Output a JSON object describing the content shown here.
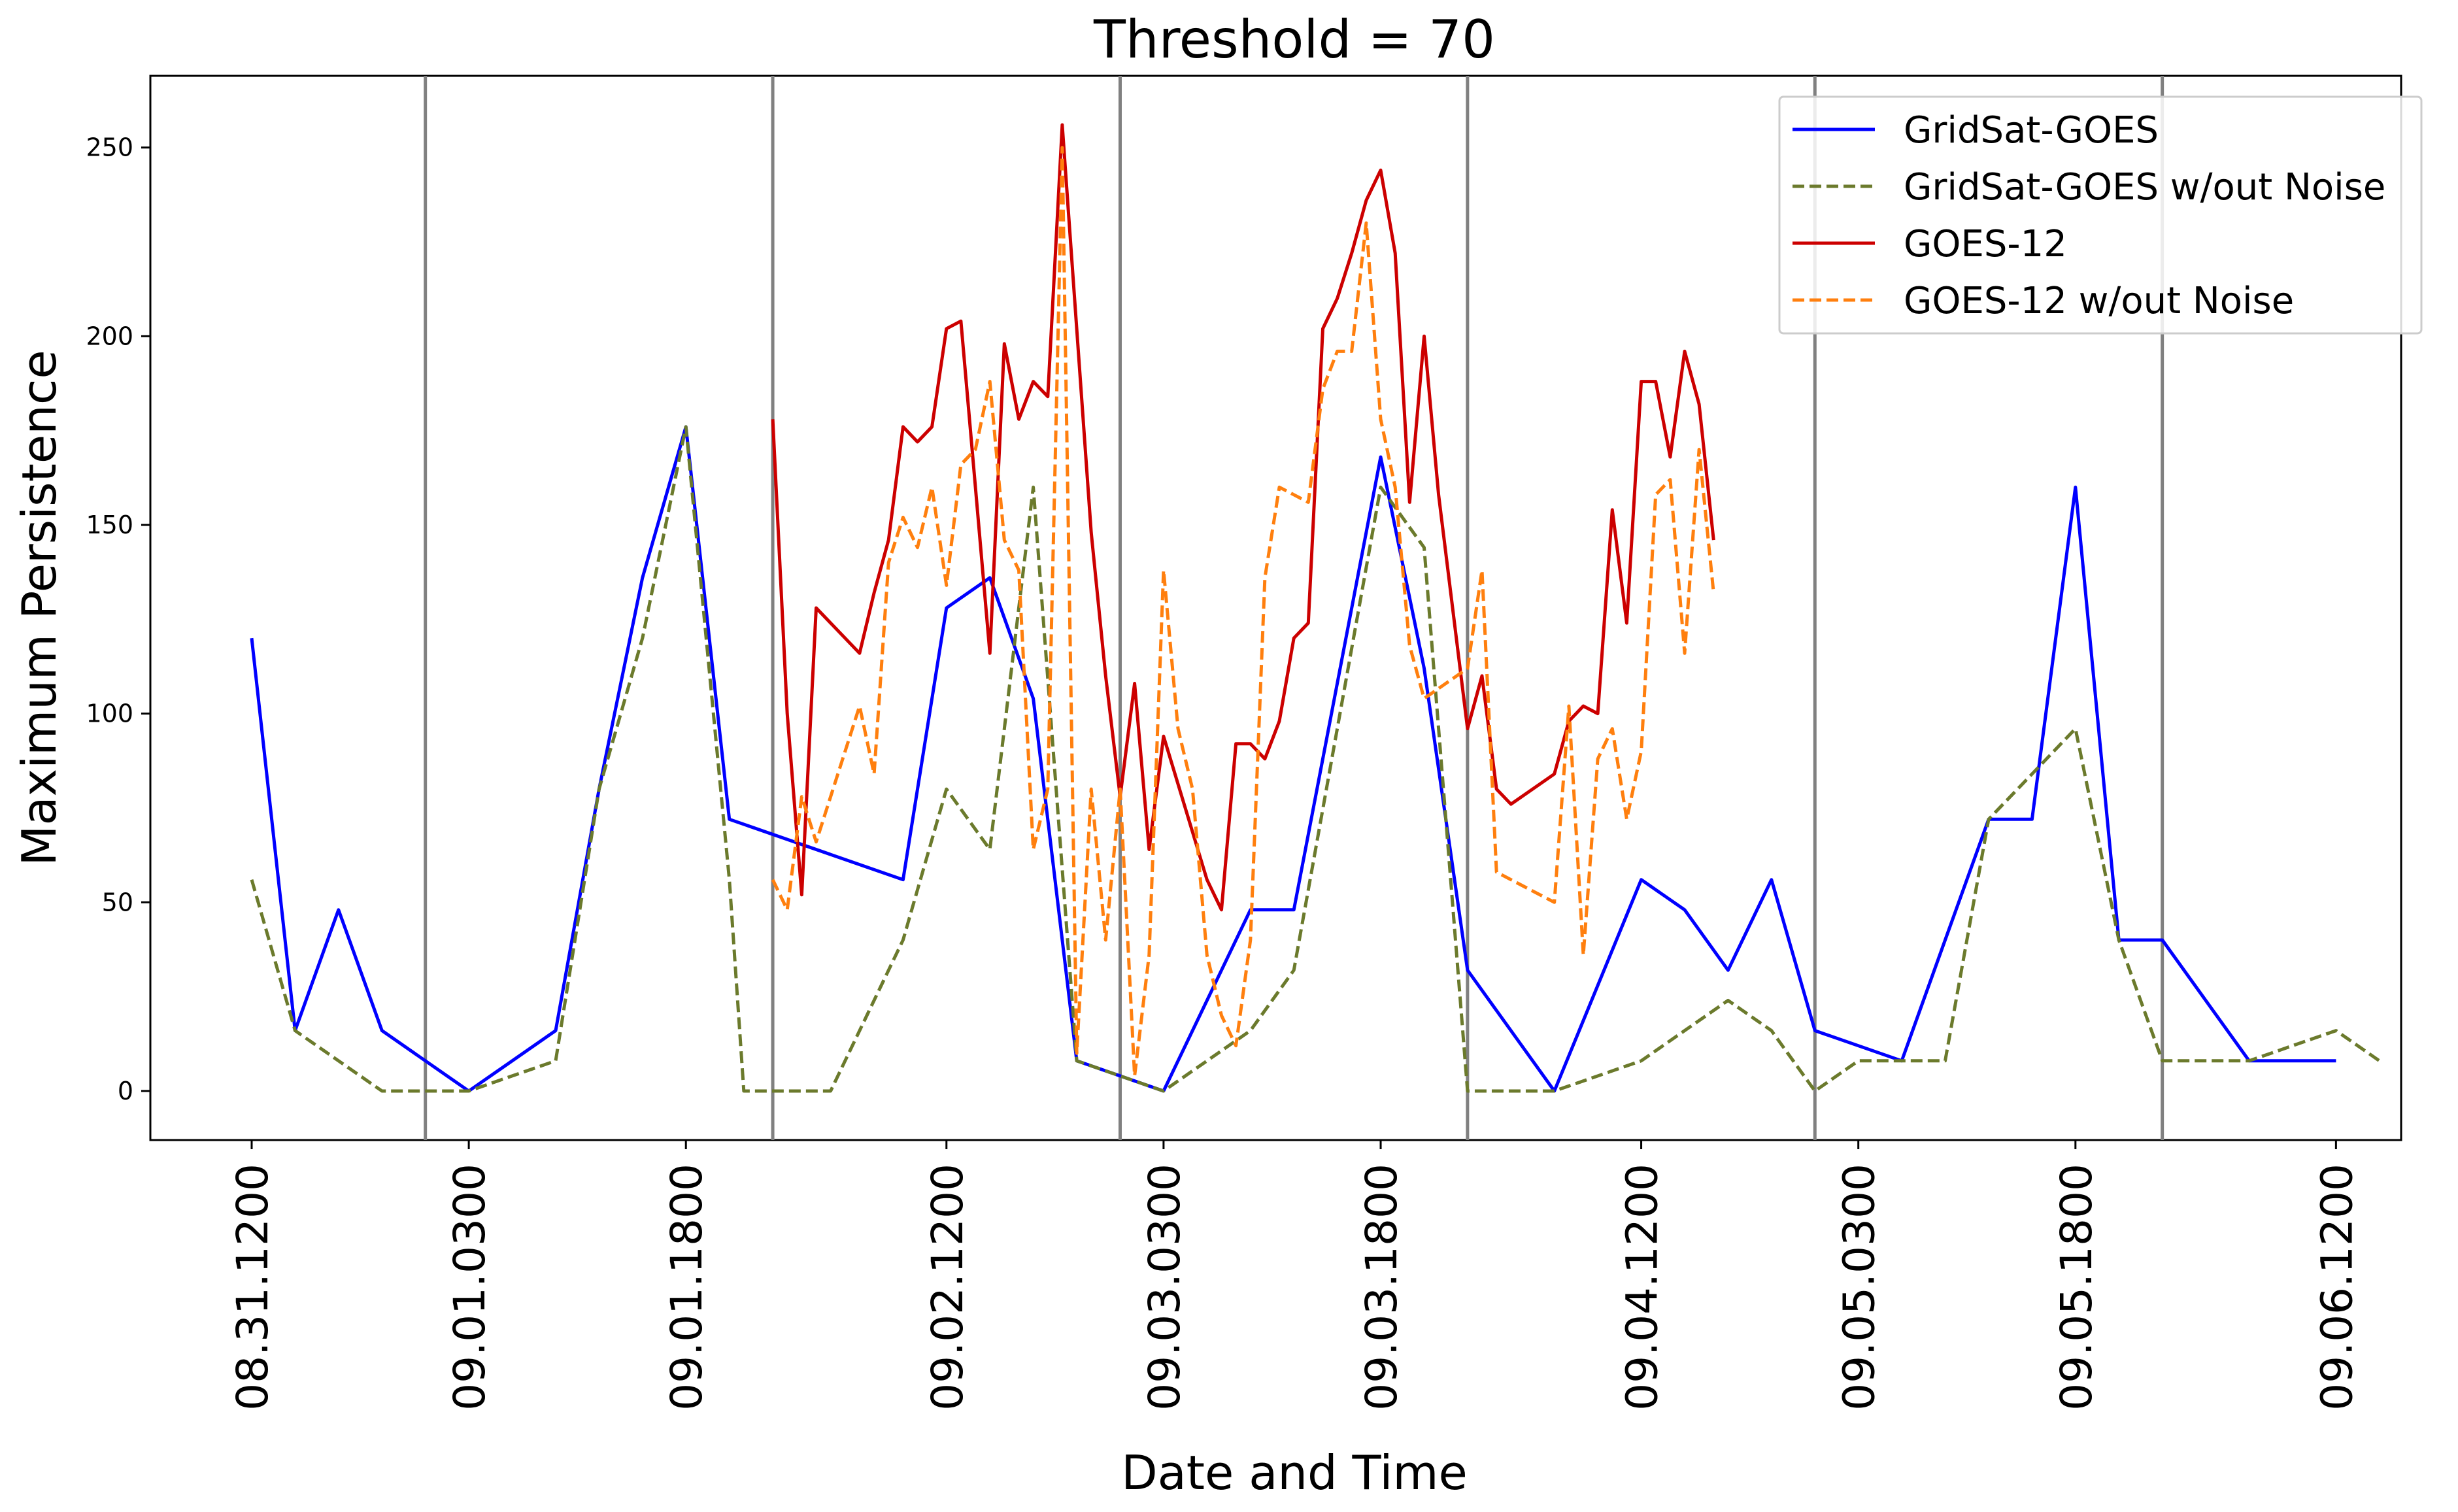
{
  "chart_data": {
    "type": "line",
    "title": "Threshold = 70",
    "xlabel": "Date and Time",
    "ylabel": "Maximum Persistence",
    "x_unit": "hours",
    "x_ticks": [
      {
        "x": 0,
        "label": "08.31.1200"
      },
      {
        "x": 15,
        "label": "09.01.0300"
      },
      {
        "x": 30,
        "label": "09.01.1800"
      },
      {
        "x": 48,
        "label": "09.02.1200"
      },
      {
        "x": 63,
        "label": "09.03.0300"
      },
      {
        "x": 78,
        "label": "09.03.1800"
      },
      {
        "x": 96,
        "label": "09.04.1200"
      },
      {
        "x": 111,
        "label": "09.05.0300"
      },
      {
        "x": 126,
        "label": "09.05.1800"
      },
      {
        "x": 144,
        "label": "09.06.1200"
      }
    ],
    "y_ticks": [
      0,
      50,
      100,
      150,
      200,
      250
    ],
    "xlim": [
      -7,
      148.5
    ],
    "ylim": [
      -13,
      269
    ],
    "vlines": [
      12,
      36,
      60,
      84,
      108,
      132
    ],
    "grid": false,
    "legend_position": "top-right",
    "series": [
      {
        "name": "GridSat-GOES",
        "color": "#0000ff",
        "dash": "solid",
        "points": [
          [
            0,
            120
          ],
          [
            3,
            16
          ],
          [
            6,
            48
          ],
          [
            9,
            16
          ],
          [
            15,
            0
          ],
          [
            21,
            16
          ],
          [
            24,
            80
          ],
          [
            27,
            136
          ],
          [
            30,
            176
          ],
          [
            33,
            72
          ],
          [
            45,
            56
          ],
          [
            48,
            128
          ],
          [
            51,
            136
          ],
          [
            54,
            104
          ],
          [
            57,
            8
          ],
          [
            63,
            0
          ],
          [
            69,
            48
          ],
          [
            72,
            48
          ],
          [
            78,
            168
          ],
          [
            81,
            112
          ],
          [
            84,
            32
          ],
          [
            90,
            0
          ],
          [
            96,
            56
          ],
          [
            99,
            48
          ],
          [
            102,
            32
          ],
          [
            105,
            56
          ],
          [
            108,
            16
          ],
          [
            111,
            12
          ],
          [
            114,
            8
          ],
          [
            117,
            40
          ],
          [
            120,
            72
          ],
          [
            123,
            72
          ],
          [
            126,
            160
          ],
          [
            129,
            40
          ],
          [
            132,
            40
          ],
          [
            135,
            24
          ],
          [
            138,
            8
          ],
          [
            144,
            8
          ]
        ]
      },
      {
        "name": "GridSat-GOES w/out Noise",
        "color": "#6b7a2c",
        "dash": "dashed",
        "points": [
          [
            0,
            56
          ],
          [
            3,
            16
          ],
          [
            9,
            0
          ],
          [
            15,
            0
          ],
          [
            21,
            8
          ],
          [
            24,
            80
          ],
          [
            27,
            120
          ],
          [
            30,
            176
          ],
          [
            33,
            56
          ],
          [
            34,
            0
          ],
          [
            39,
            0
          ],
          [
            40,
            0
          ],
          [
            45,
            40
          ],
          [
            48,
            80
          ],
          [
            51,
            64
          ],
          [
            54,
            160
          ],
          [
            57,
            8
          ],
          [
            63,
            0
          ],
          [
            69,
            16
          ],
          [
            72,
            32
          ],
          [
            78,
            160
          ],
          [
            81,
            144
          ],
          [
            84,
            0
          ],
          [
            90,
            0
          ],
          [
            96,
            8
          ],
          [
            99,
            16
          ],
          [
            102,
            24
          ],
          [
            105,
            16
          ],
          [
            108,
            0
          ],
          [
            111,
            8
          ],
          [
            114,
            8
          ],
          [
            117,
            8
          ],
          [
            120,
            72
          ],
          [
            126,
            96
          ],
          [
            129,
            40
          ],
          [
            132,
            8
          ],
          [
            138,
            8
          ],
          [
            141,
            12
          ],
          [
            144,
            16
          ],
          [
            147,
            8
          ]
        ]
      },
      {
        "name": "GOES-12",
        "color": "#cc0000",
        "dash": "solid",
        "points": [
          [
            36,
            178
          ],
          [
            37,
            100
          ],
          [
            38,
            52
          ],
          [
            39,
            128
          ],
          [
            42,
            116
          ],
          [
            43,
            132
          ],
          [
            44,
            146
          ],
          [
            45,
            176
          ],
          [
            46,
            172
          ],
          [
            47,
            176
          ],
          [
            48,
            202
          ],
          [
            49,
            204
          ],
          [
            50,
            160
          ],
          [
            51,
            116
          ],
          [
            52,
            198
          ],
          [
            53,
            178
          ],
          [
            54,
            188
          ],
          [
            55,
            184
          ],
          [
            56,
            256
          ],
          [
            58,
            148
          ],
          [
            59,
            110
          ],
          [
            60,
            78
          ],
          [
            61,
            108
          ],
          [
            62,
            64
          ],
          [
            63,
            94
          ],
          [
            66,
            56
          ],
          [
            67,
            48
          ],
          [
            68,
            92
          ],
          [
            69,
            92
          ],
          [
            70,
            88
          ],
          [
            71,
            98
          ],
          [
            72,
            120
          ],
          [
            73,
            124
          ],
          [
            74,
            202
          ],
          [
            75,
            210
          ],
          [
            76,
            222
          ],
          [
            77,
            236
          ],
          [
            78,
            244
          ],
          [
            79,
            222
          ],
          [
            80,
            156
          ],
          [
            81,
            200
          ],
          [
            82,
            158
          ],
          [
            84,
            96
          ],
          [
            85,
            110
          ],
          [
            86,
            80
          ],
          [
            87,
            76
          ],
          [
            90,
            84
          ],
          [
            91,
            98
          ],
          [
            92,
            102
          ],
          [
            93,
            100
          ],
          [
            94,
            154
          ],
          [
            95,
            124
          ],
          [
            96,
            188
          ],
          [
            97,
            188
          ],
          [
            98,
            168
          ],
          [
            99,
            196
          ],
          [
            100,
            182
          ],
          [
            101,
            146
          ]
        ]
      },
      {
        "name": "GOES-12 w/out Noise",
        "color": "#ff7f0e",
        "dash": "dashed",
        "points": [
          [
            36,
            56
          ],
          [
            37,
            48
          ],
          [
            38,
            78
          ],
          [
            39,
            66
          ],
          [
            42,
            102
          ],
          [
            43,
            84
          ],
          [
            44,
            140
          ],
          [
            45,
            152
          ],
          [
            46,
            144
          ],
          [
            47,
            160
          ],
          [
            48,
            134
          ],
          [
            49,
            166
          ],
          [
            50,
            170
          ],
          [
            51,
            188
          ],
          [
            52,
            146
          ],
          [
            53,
            138
          ],
          [
            54,
            64
          ],
          [
            55,
            80
          ],
          [
            56,
            250
          ],
          [
            57,
            10
          ],
          [
            58,
            80
          ],
          [
            59,
            40
          ],
          [
            60,
            80
          ],
          [
            61,
            4
          ],
          [
            62,
            36
          ],
          [
            63,
            138
          ],
          [
            64,
            96
          ],
          [
            65,
            80
          ],
          [
            66,
            36
          ],
          [
            67,
            20
          ],
          [
            68,
            12
          ],
          [
            69,
            40
          ],
          [
            70,
            136
          ],
          [
            71,
            160
          ],
          [
            72,
            158
          ],
          [
            73,
            156
          ],
          [
            74,
            186
          ],
          [
            75,
            196
          ],
          [
            76,
            196
          ],
          [
            77,
            230
          ],
          [
            78,
            178
          ],
          [
            79,
            160
          ],
          [
            80,
            118
          ],
          [
            81,
            104
          ],
          [
            84,
            112
          ],
          [
            85,
            138
          ],
          [
            86,
            58
          ],
          [
            87,
            56
          ],
          [
            90,
            50
          ],
          [
            91,
            102
          ],
          [
            92,
            36
          ],
          [
            93,
            88
          ],
          [
            94,
            96
          ],
          [
            95,
            72
          ],
          [
            96,
            90
          ],
          [
            97,
            158
          ],
          [
            98,
            162
          ],
          [
            99,
            116
          ],
          [
            100,
            170
          ],
          [
            101,
            132
          ]
        ]
      }
    ]
  }
}
